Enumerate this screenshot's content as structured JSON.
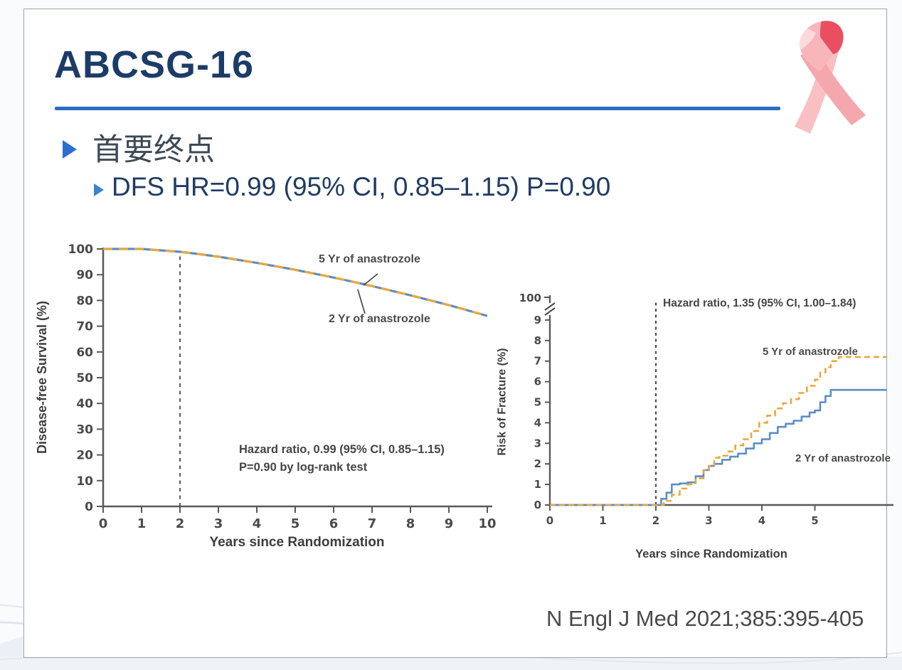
{
  "slide": {
    "title": "ABCSG-16",
    "bullets": [
      {
        "label": "首要终点"
      },
      {
        "label": "DFS HR=0.99 (95% CI, 0.85–1.15) P=0.90"
      }
    ],
    "citation": "N Engl J Med 2021;385:395-405",
    "ribbon_icon": "pink-awareness-ribbon",
    "colors": {
      "title": "#1c3c68",
      "rule": "#2b6cc4",
      "bullet_marker": "#2d6fd1",
      "curve_5yr": "#e8a83e",
      "curve_2yr": "#5b8dc8",
      "chart_text": "#4a4a4a"
    }
  },
  "chart_data": [
    {
      "id": "dfs",
      "type": "line",
      "title": "",
      "xlabel": "Years since Randomization",
      "ylabel": "Disease-free Survival (%)",
      "xlim": [
        0,
        10.2
      ],
      "ylim": [
        0,
        100
      ],
      "xticks": [
        0,
        1,
        2,
        3,
        4,
        5,
        6,
        7,
        8,
        9,
        10
      ],
      "yticks": [
        0,
        10,
        20,
        30,
        40,
        50,
        60,
        70,
        80,
        90,
        100
      ],
      "grid": false,
      "legend_position": "inline-labels",
      "reference_line_x": 2,
      "annotation_line1": "Hazard ratio, 0.99 (95% CI, 0.85–1.15)",
      "annotation_line2": "P=0.90 by log-rank test",
      "series": [
        {
          "name": "2 Yr of anastrozole",
          "style": "solid",
          "color": "#5b8dc8",
          "step": false,
          "x": [
            0,
            1,
            2,
            2.5,
            3,
            4,
            5,
            6,
            7,
            8,
            9,
            10
          ],
          "y": [
            100,
            100,
            98.9,
            98,
            97,
            94.6,
            91.9,
            88.9,
            85.6,
            82,
            78.2,
            74
          ]
        },
        {
          "name": "5 Yr of anastrozole",
          "style": "dashed",
          "color": "#e8a83e",
          "step": false,
          "x": [
            0,
            1,
            2,
            2.5,
            3,
            4,
            5,
            6,
            7,
            8,
            9,
            10
          ],
          "y": [
            100,
            100,
            98.9,
            98,
            97,
            94.6,
            91.9,
            88.9,
            85.6,
            82,
            78.2,
            74
          ]
        }
      ]
    },
    {
      "id": "fracture",
      "type": "line",
      "title": "",
      "xlabel": "Years since Randomization",
      "ylabel": "Risk of Fracture (%)",
      "xlim": [
        0,
        6.4
      ],
      "ylim": [
        0,
        9
      ],
      "y_axis_break_top_label": 100,
      "xticks": [
        0,
        1,
        2,
        3,
        4,
        5
      ],
      "yticks": [
        0,
        1,
        2,
        3,
        4,
        5,
        6,
        7,
        8,
        9
      ],
      "grid": false,
      "legend_position": "inline-labels",
      "reference_line_x": 2,
      "annotation_line1": "Hazard ratio, 1.35 (95% CI, 1.00–1.84)",
      "series": [
        {
          "name": "2 Yr of anastrozole",
          "style": "solid",
          "color": "#5b8dc8",
          "step": true,
          "x": [
            0,
            1,
            2,
            2.1,
            2.2,
            2.3,
            2.45,
            2.6,
            2.75,
            2.9,
            3.0,
            3.1,
            3.25,
            3.4,
            3.55,
            3.7,
            3.85,
            4.0,
            4.15,
            4.3,
            4.45,
            4.6,
            4.75,
            4.9,
            5.0,
            5.1,
            5.2,
            5.3,
            6.35
          ],
          "y": [
            0,
            0,
            0,
            0.3,
            0.6,
            1.0,
            1.05,
            1.1,
            1.4,
            1.7,
            1.9,
            2.0,
            2.2,
            2.35,
            2.5,
            2.75,
            3.0,
            3.2,
            3.5,
            3.8,
            3.95,
            4.1,
            4.3,
            4.5,
            4.6,
            5.0,
            5.3,
            5.6,
            5.6
          ]
        },
        {
          "name": "5 Yr of anastrozole",
          "style": "dashed",
          "color": "#e8a83e",
          "step": true,
          "x": [
            0,
            1,
            2,
            2.15,
            2.3,
            2.45,
            2.6,
            2.75,
            2.9,
            3.0,
            3.1,
            3.2,
            3.35,
            3.5,
            3.65,
            3.8,
            3.95,
            4.1,
            4.25,
            4.4,
            4.55,
            4.7,
            4.85,
            5.0,
            5.1,
            5.2,
            5.3,
            5.45,
            6.35
          ],
          "y": [
            0,
            0,
            0,
            0.2,
            0.5,
            0.8,
            1.0,
            1.3,
            1.7,
            1.9,
            2.3,
            2.4,
            2.6,
            2.9,
            3.2,
            3.6,
            4.0,
            4.35,
            4.7,
            4.95,
            5.15,
            5.45,
            5.8,
            6.1,
            6.45,
            6.7,
            7.0,
            7.2,
            7.2
          ]
        }
      ]
    }
  ]
}
